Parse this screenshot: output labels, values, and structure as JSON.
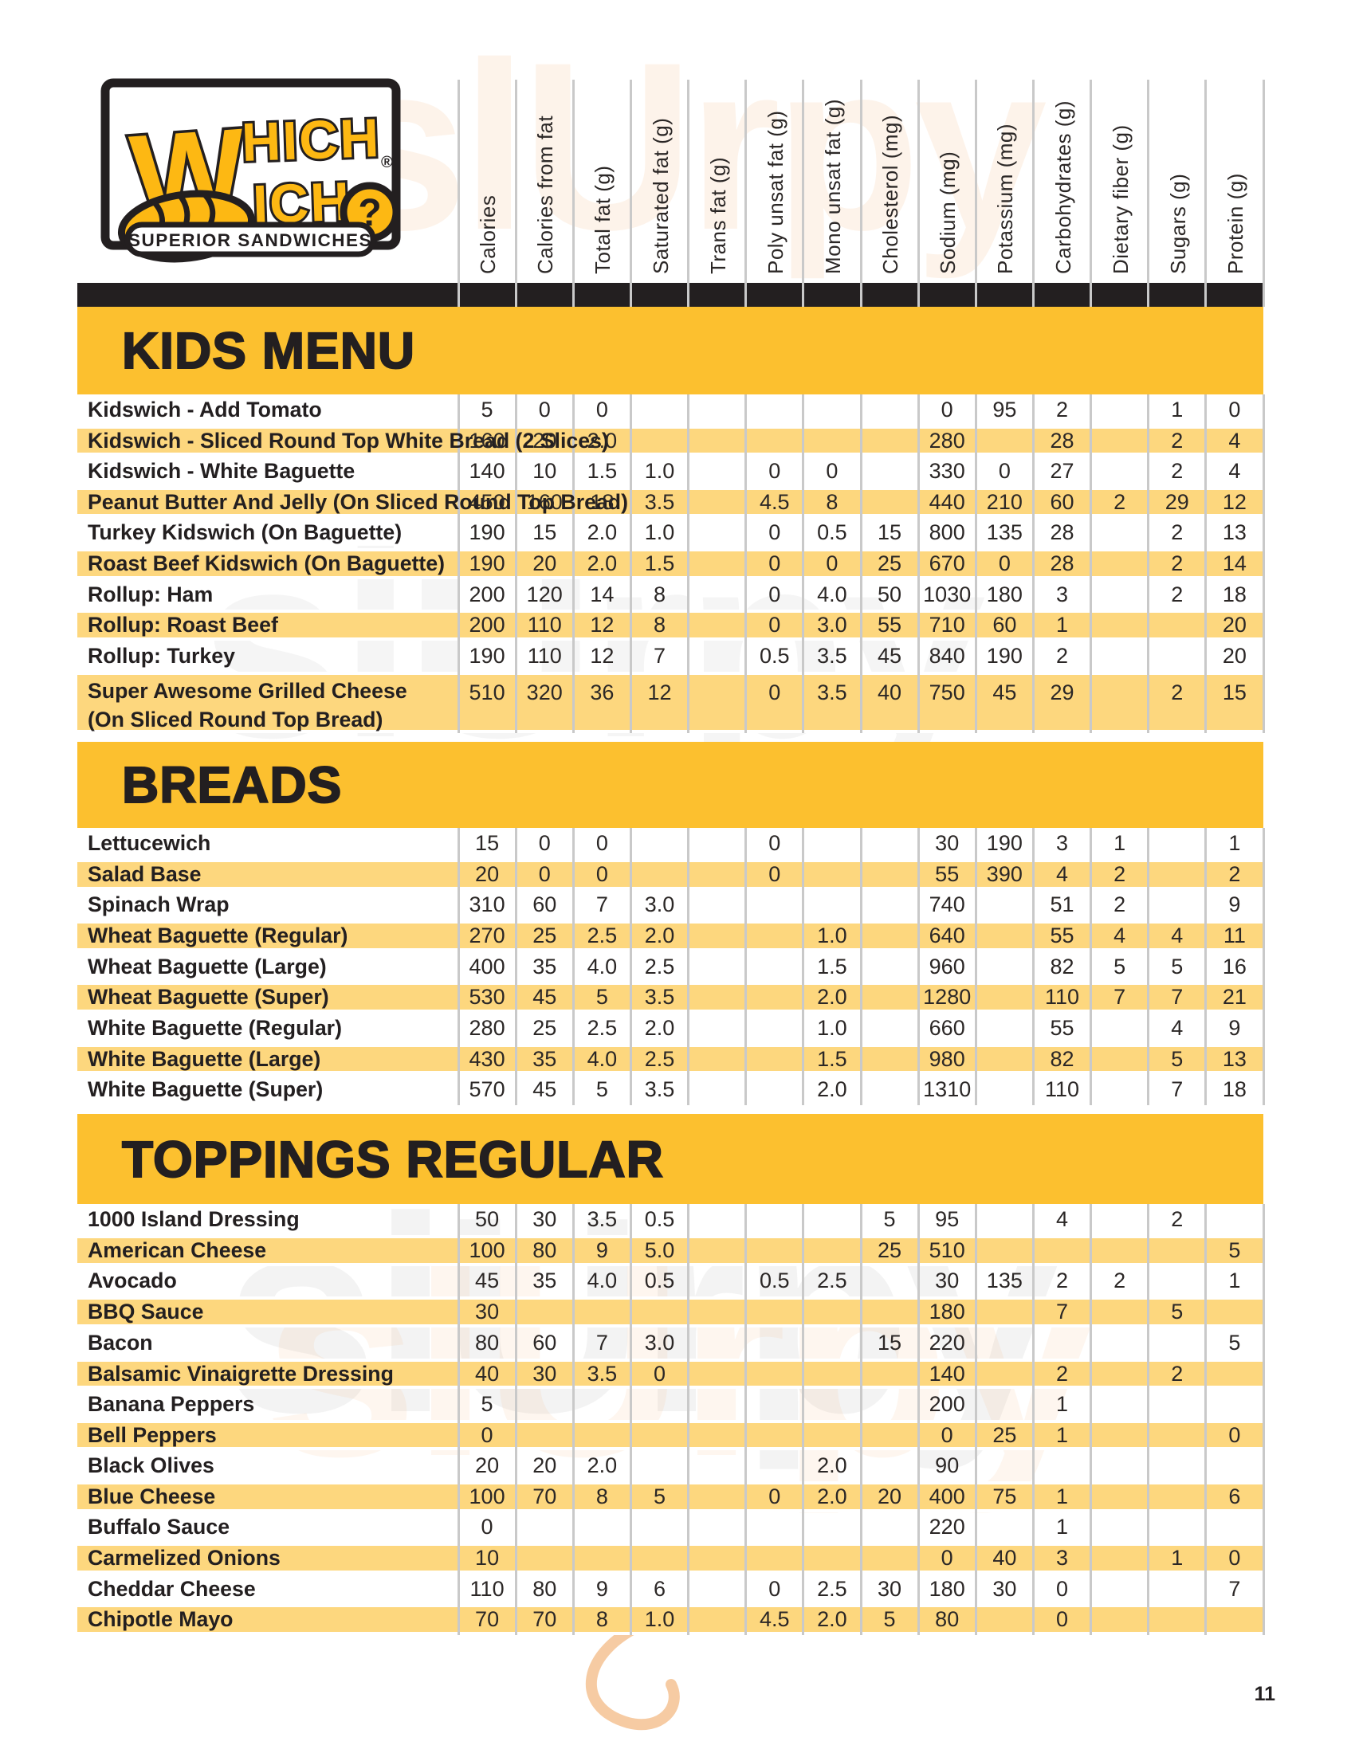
{
  "page": {
    "number": "11"
  },
  "logo": {
    "word_big_w": "W",
    "word_top": "HICH",
    "word_bottom": "ICH",
    "registered": "®",
    "question_mark": "?",
    "tagline": "SUPERIOR SANDWICHES"
  },
  "watermark": {
    "text": "slUrpy"
  },
  "colors": {
    "band_yellow": "#FCC02F",
    "stripe_yellow": "#FDD77E",
    "black": "#231F20",
    "line_gray": "#C9C9C9",
    "logo_yellow": "#FDB813"
  },
  "columns": [
    "Calories",
    "Calories from fat",
    "Total fat (g)",
    "Saturated fat (g)",
    "Trans fat (g)",
    "Poly unsat fat (g)",
    "Mono unsat fat (g)",
    "Cholesterol (mg)",
    "Sodium (mg)",
    "Potassium (mg)",
    "Carbohydrates (g)",
    "Dietary fiber (g)",
    "Sugars (g)",
    "Protein (g)"
  ],
  "sections": [
    {
      "title": "KIDS MENU",
      "rows": [
        {
          "name": "Kidswich - Add Tomato",
          "values": [
            "5",
            "0",
            "0",
            "",
            "",
            "",
            "",
            "",
            "0",
            "95",
            "2",
            "",
            "1",
            "0"
          ]
        },
        {
          "name": "Kidswich - Sliced Round Top White Bread (2 Slices)",
          "values": [
            "160",
            "20",
            "2.0",
            "",
            "",
            "",
            "",
            "",
            "280",
            "",
            "28",
            "",
            "2",
            "4"
          ]
        },
        {
          "name": "Kidswich - White Baguette",
          "values": [
            "140",
            "10",
            "1.5",
            "1.0",
            "",
            "0",
            "0",
            "",
            "330",
            "0",
            "27",
            "",
            "2",
            "4"
          ]
        },
        {
          "name": "Peanut Butter And Jelly (On Sliced Round Top Bread)",
          "values": [
            "450",
            "160",
            "18",
            "3.5",
            "",
            "4.5",
            "8",
            "",
            "440",
            "210",
            "60",
            "2",
            "29",
            "12"
          ]
        },
        {
          "name": "Turkey Kidswich (On Baguette)",
          "values": [
            "190",
            "15",
            "2.0",
            "1.0",
            "",
            "0",
            "0.5",
            "15",
            "800",
            "135",
            "28",
            "",
            "2",
            "13"
          ]
        },
        {
          "name": "Roast Beef Kidswich (On Baguette)",
          "values": [
            "190",
            "20",
            "2.0",
            "1.5",
            "",
            "0",
            "0",
            "25",
            "670",
            "0",
            "28",
            "",
            "2",
            "14"
          ]
        },
        {
          "name": "Rollup: Ham",
          "values": [
            "200",
            "120",
            "14",
            "8",
            "",
            "0",
            "4.0",
            "50",
            "1030",
            "180",
            "3",
            "",
            "2",
            "18"
          ]
        },
        {
          "name": "Rollup: Roast Beef",
          "values": [
            "200",
            "110",
            "12",
            "8",
            "",
            "0",
            "3.0",
            "55",
            "710",
            "60",
            "1",
            "",
            "",
            "20"
          ]
        },
        {
          "name": "Rollup: Turkey",
          "values": [
            "190",
            "110",
            "12",
            "7",
            "",
            "0.5",
            "3.5",
            "45",
            "840",
            "190",
            "2",
            "",
            "",
            "20"
          ]
        },
        {
          "name": "Super Awesome Grilled Cheese",
          "name2": "(On Sliced Round Top Bread)",
          "values": [
            "510",
            "320",
            "36",
            "12",
            "",
            "0",
            "3.5",
            "40",
            "750",
            "45",
            "29",
            "",
            "2",
            "15"
          ]
        }
      ]
    },
    {
      "title": "BREADS",
      "rows": [
        {
          "name": "Lettucewich",
          "values": [
            "15",
            "0",
            "0",
            "",
            "",
            "0",
            "",
            "",
            "30",
            "190",
            "3",
            "1",
            "",
            "1"
          ]
        },
        {
          "name": "Salad Base",
          "values": [
            "20",
            "0",
            "0",
            "",
            "",
            "0",
            "",
            "",
            "55",
            "390",
            "4",
            "2",
            "",
            "2"
          ]
        },
        {
          "name": "Spinach Wrap",
          "values": [
            "310",
            "60",
            "7",
            "3.0",
            "",
            "",
            "",
            "",
            "740",
            "",
            "51",
            "2",
            "",
            "9"
          ]
        },
        {
          "name": "Wheat Baguette (Regular)",
          "values": [
            "270",
            "25",
            "2.5",
            "2.0",
            "",
            "",
            "1.0",
            "",
            "640",
            "",
            "55",
            "4",
            "4",
            "11"
          ]
        },
        {
          "name": "Wheat Baguette (Large)",
          "values": [
            "400",
            "35",
            "4.0",
            "2.5",
            "",
            "",
            "1.5",
            "",
            "960",
            "",
            "82",
            "5",
            "5",
            "16"
          ]
        },
        {
          "name": "Wheat Baguette (Super)",
          "values": [
            "530",
            "45",
            "5",
            "3.5",
            "",
            "",
            "2.0",
            "",
            "1280",
            "",
            "110",
            "7",
            "7",
            "21"
          ]
        },
        {
          "name": "White Baguette (Regular)",
          "values": [
            "280",
            "25",
            "2.5",
            "2.0",
            "",
            "",
            "1.0",
            "",
            "660",
            "",
            "55",
            "",
            "4",
            "9"
          ]
        },
        {
          "name": "White Baguette (Large)",
          "values": [
            "430",
            "35",
            "4.0",
            "2.5",
            "",
            "",
            "1.5",
            "",
            "980",
            "",
            "82",
            "",
            "5",
            "13"
          ]
        },
        {
          "name": "White Baguette (Super)",
          "values": [
            "570",
            "45",
            "5",
            "3.5",
            "",
            "",
            "2.0",
            "",
            "1310",
            "",
            "110",
            "",
            "7",
            "18"
          ]
        }
      ]
    },
    {
      "title": "TOPPINGS REGULAR",
      "rows": [
        {
          "name": "1000 Island Dressing",
          "values": [
            "50",
            "30",
            "3.5",
            "0.5",
            "",
            "",
            "",
            "5",
            "95",
            "",
            "4",
            "",
            "2",
            ""
          ]
        },
        {
          "name": "American Cheese",
          "values": [
            "100",
            "80",
            "9",
            "5.0",
            "",
            "",
            "",
            "25",
            "510",
            "",
            "",
            "",
            "",
            "5"
          ]
        },
        {
          "name": "Avocado",
          "values": [
            "45",
            "35",
            "4.0",
            "0.5",
            "",
            "0.5",
            "2.5",
            "",
            "30",
            "135",
            "2",
            "2",
            "",
            "1"
          ]
        },
        {
          "name": "BBQ Sauce",
          "values": [
            "30",
            "",
            "",
            "",
            "",
            "",
            "",
            "",
            "180",
            "",
            "7",
            "",
            "5",
            ""
          ]
        },
        {
          "name": "Bacon",
          "values": [
            "80",
            "60",
            "7",
            "3.0",
            "",
            "",
            "",
            "15",
            "220",
            "",
            "",
            "",
            "",
            "5"
          ]
        },
        {
          "name": "Balsamic Vinaigrette Dressing",
          "values": [
            "40",
            "30",
            "3.5",
            "0",
            "",
            "",
            "",
            "",
            "140",
            "",
            "2",
            "",
            "2",
            ""
          ]
        },
        {
          "name": "Banana Peppers",
          "values": [
            "5",
            "",
            "",
            "",
            "",
            "",
            "",
            "",
            "200",
            "",
            "1",
            "",
            "",
            ""
          ]
        },
        {
          "name": "Bell Peppers",
          "values": [
            "0",
            "",
            "",
            "",
            "",
            "",
            "",
            "",
            "0",
            "25",
            "1",
            "",
            "",
            "0"
          ]
        },
        {
          "name": "Black Olives",
          "values": [
            "20",
            "20",
            "2.0",
            "",
            "",
            "",
            "2.0",
            "",
            "90",
            "",
            "",
            "",
            "",
            ""
          ]
        },
        {
          "name": "Blue Cheese",
          "values": [
            "100",
            "70",
            "8",
            "5",
            "",
            "0",
            "2.0",
            "20",
            "400",
            "75",
            "1",
            "",
            "",
            "6"
          ]
        },
        {
          "name": "Buffalo Sauce",
          "values": [
            "0",
            "",
            "",
            "",
            "",
            "",
            "",
            "",
            "220",
            "",
            "1",
            "",
            "",
            ""
          ]
        },
        {
          "name": "Carmelized Onions",
          "values": [
            "10",
            "",
            "",
            "",
            "",
            "",
            "",
            "",
            "0",
            "40",
            "3",
            "",
            "1",
            "0"
          ]
        },
        {
          "name": "Cheddar Cheese",
          "values": [
            "110",
            "80",
            "9",
            "6",
            "",
            "0",
            "2.5",
            "30",
            "180",
            "30",
            "0",
            "",
            "",
            "7"
          ]
        },
        {
          "name": "Chipotle Mayo",
          "values": [
            "70",
            "70",
            "8",
            "1.0",
            "",
            "4.5",
            "2.0",
            "5",
            "80",
            "",
            "0",
            "",
            "",
            ""
          ]
        }
      ]
    }
  ]
}
